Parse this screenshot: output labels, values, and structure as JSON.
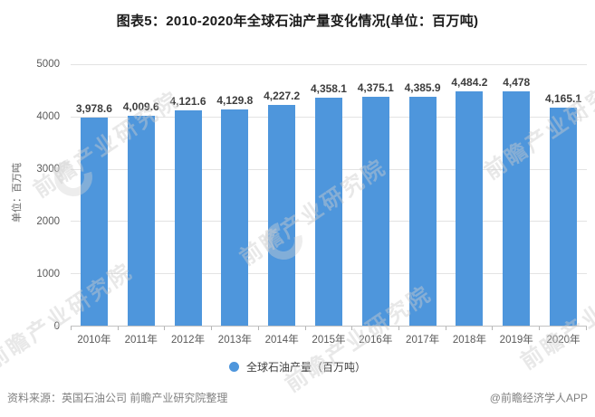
{
  "page": {
    "title": "图表5：2010-2020年全球石油产量变化情况(单位：百万吨)"
  },
  "chart_data": {
    "type": "bar",
    "title": "图表5：2010-2020年全球石油产量变化情况(单位：百万吨)",
    "xlabel": "",
    "ylabel": "单位：百万吨",
    "categories": [
      "2010年",
      "2011年",
      "2012年",
      "2013年",
      "2014年",
      "2015年",
      "2016年",
      "2017年",
      "2018年",
      "2019年",
      "2020年"
    ],
    "values": [
      3978.6,
      4009.6,
      4121.6,
      4129.8,
      4227.2,
      4358.1,
      4375.1,
      4385.9,
      4484.2,
      4478,
      4165.1
    ],
    "value_labels": [
      "3,978.6",
      "4,009.6",
      "4,121.6",
      "4,129.8",
      "4,227.2",
      "4,358.1",
      "4,375.1",
      "4,385.9",
      "4,484.2",
      "4,478",
      "4,165.1"
    ],
    "ylim": [
      0,
      5000
    ],
    "yticks": [
      0,
      1000,
      2000,
      3000,
      4000,
      5000
    ],
    "grid": true,
    "legend_position": "bottom",
    "legend": [
      "全球石油产量（百万吨）"
    ],
    "bar_color": "#4E96DC"
  },
  "legend": {
    "label": "全球石油产量（百万吨）"
  },
  "footer": {
    "source": "资料来源：英国石油公司 前瞻产业研究院整理",
    "credit": "@前瞻经济学人APP"
  },
  "watermark": {
    "text": "前瞻产业研究院"
  },
  "colors": {
    "bar": "#4E96DC",
    "legend_dot": "#4E96DC"
  }
}
